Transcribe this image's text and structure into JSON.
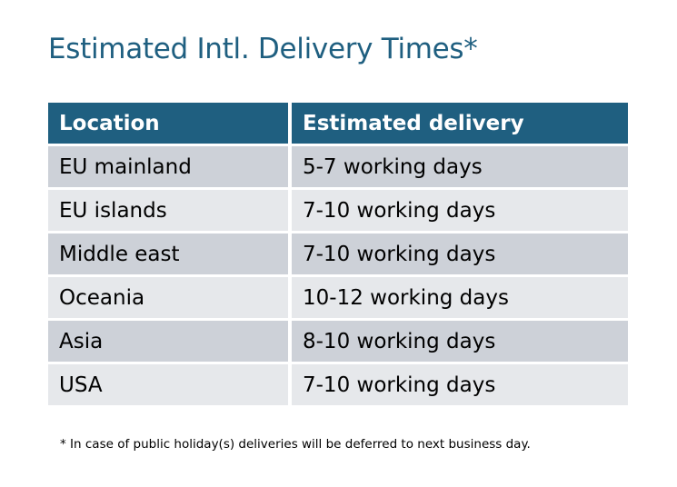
{
  "title": "Estimated Intl. Delivery Times*",
  "table": {
    "headers": [
      "Location",
      "Estimated delivery"
    ],
    "rows": [
      [
        "EU mainland",
        "5-7 working days"
      ],
      [
        "EU islands",
        "7-10 working days"
      ],
      [
        "Middle east",
        "7-10 working days"
      ],
      [
        "Oceania",
        "10-12 working days"
      ],
      [
        "Asia",
        "8-10 working days"
      ],
      [
        "USA",
        "7-10 working days"
      ]
    ]
  },
  "footnote": "* In case of public holiday(s) deliveries will be deferred to next business day.",
  "colors": {
    "accent": "#1f5f80",
    "row_dark": "#cdd1d8",
    "row_light": "#e6e8eb"
  }
}
